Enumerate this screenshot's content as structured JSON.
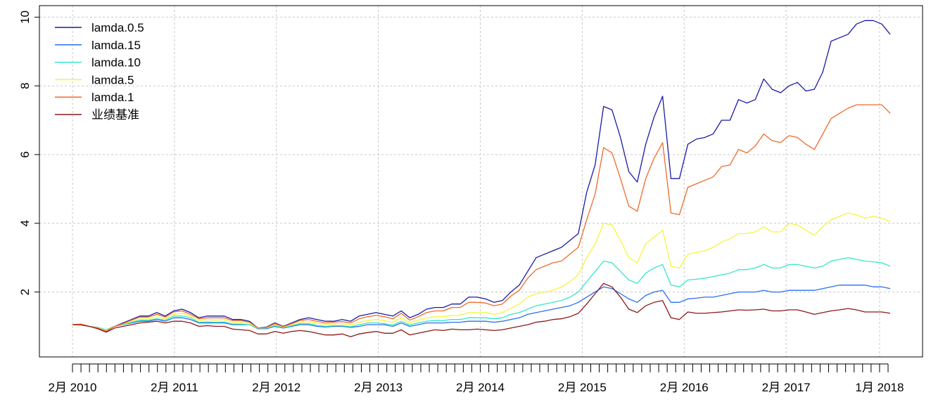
{
  "chart_data": {
    "type": "line",
    "title": "",
    "xlabel": "",
    "ylabel": "",
    "ylim": [
      0,
      10
    ],
    "y_ticks": [
      2,
      4,
      6,
      8,
      10
    ],
    "x_tick_labels": [
      "2月 2010",
      "2月 2011",
      "2月 2012",
      "2月 2013",
      "2月 2014",
      "2月 2015",
      "2月 2016",
      "2月 2017",
      "1月 2018"
    ],
    "grid": true,
    "legend_position": "top-left",
    "x_start": "2010-02",
    "x_end": "2018-02",
    "series": [
      {
        "name": "lamda.0.5",
        "color": "#1a1aa6",
        "values": [
          1.05,
          1.06,
          1.0,
          0.95,
          0.85,
          1.0,
          1.1,
          1.2,
          1.3,
          1.3,
          1.4,
          1.3,
          1.45,
          1.5,
          1.4,
          1.25,
          1.3,
          1.3,
          1.3,
          1.2,
          1.2,
          1.15,
          0.95,
          0.98,
          1.1,
          1.0,
          1.1,
          1.2,
          1.25,
          1.2,
          1.15,
          1.15,
          1.2,
          1.15,
          1.3,
          1.35,
          1.4,
          1.35,
          1.3,
          1.45,
          1.25,
          1.35,
          1.5,
          1.55,
          1.55,
          1.65,
          1.65,
          1.85,
          1.85,
          1.8,
          1.7,
          1.75,
          2.0,
          2.2,
          2.6,
          3.0,
          3.1,
          3.2,
          3.3,
          3.5,
          3.7,
          4.9,
          5.7,
          7.4,
          7.3,
          6.5,
          5.5,
          5.2,
          6.3,
          7.1,
          7.7,
          5.3,
          5.3,
          6.3,
          6.45,
          6.5,
          6.6,
          7.0,
          7.0,
          7.6,
          7.5,
          7.6,
          8.2,
          7.9,
          7.8,
          8.0,
          8.1,
          7.85,
          7.9,
          8.4,
          9.3,
          9.4,
          9.5,
          9.8,
          9.9,
          9.9,
          9.8,
          9.5
        ]
      },
      {
        "name": "lamda.15",
        "color": "#2a6ff2",
        "values": [
          1.05,
          1.05,
          1.0,
          0.97,
          0.9,
          1.0,
          1.05,
          1.1,
          1.15,
          1.15,
          1.2,
          1.15,
          1.25,
          1.25,
          1.2,
          1.1,
          1.1,
          1.1,
          1.1,
          1.05,
          1.05,
          1.05,
          0.93,
          0.93,
          1.0,
          0.95,
          1.0,
          1.05,
          1.05,
          1.0,
          0.98,
          1.0,
          1.0,
          0.97,
          1.0,
          1.05,
          1.05,
          1.05,
          1.0,
          1.1,
          1.0,
          1.05,
          1.1,
          1.1,
          1.1,
          1.12,
          1.12,
          1.15,
          1.15,
          1.15,
          1.12,
          1.15,
          1.2,
          1.25,
          1.35,
          1.4,
          1.45,
          1.5,
          1.55,
          1.6,
          1.7,
          1.85,
          2.0,
          2.15,
          2.1,
          1.95,
          1.8,
          1.7,
          1.9,
          2.0,
          2.05,
          1.7,
          1.7,
          1.8,
          1.82,
          1.85,
          1.85,
          1.9,
          1.95,
          2.0,
          2.0,
          2.0,
          2.05,
          2.0,
          2.0,
          2.05,
          2.05,
          2.05,
          2.05,
          2.1,
          2.15,
          2.2,
          2.2,
          2.2,
          2.2,
          2.15,
          2.15,
          2.1
        ]
      },
      {
        "name": "lamda.10",
        "color": "#35e8c8",
        "values": [
          1.05,
          1.05,
          1.0,
          0.97,
          0.9,
          1.0,
          1.05,
          1.12,
          1.18,
          1.18,
          1.22,
          1.18,
          1.3,
          1.3,
          1.25,
          1.12,
          1.13,
          1.12,
          1.13,
          1.07,
          1.07,
          1.05,
          0.94,
          0.95,
          1.02,
          0.97,
          1.02,
          1.08,
          1.08,
          1.03,
          1.0,
          1.02,
          1.02,
          0.99,
          1.05,
          1.1,
          1.1,
          1.08,
          1.04,
          1.15,
          1.04,
          1.1,
          1.15,
          1.17,
          1.17,
          1.2,
          1.2,
          1.25,
          1.25,
          1.25,
          1.22,
          1.25,
          1.35,
          1.4,
          1.5,
          1.6,
          1.65,
          1.7,
          1.75,
          1.85,
          2.0,
          2.3,
          2.6,
          2.9,
          2.85,
          2.6,
          2.35,
          2.25,
          2.55,
          2.7,
          2.8,
          2.2,
          2.15,
          2.35,
          2.37,
          2.4,
          2.45,
          2.5,
          2.55,
          2.65,
          2.65,
          2.7,
          2.8,
          2.7,
          2.7,
          2.8,
          2.8,
          2.75,
          2.7,
          2.75,
          2.9,
          2.95,
          3.0,
          2.95,
          2.9,
          2.88,
          2.85,
          2.75
        ]
      },
      {
        "name": "lamda.5",
        "color": "#f5f53a",
        "values": [
          1.05,
          1.06,
          1.0,
          0.96,
          0.88,
          1.0,
          1.07,
          1.15,
          1.22,
          1.22,
          1.28,
          1.22,
          1.35,
          1.38,
          1.3,
          1.17,
          1.2,
          1.18,
          1.2,
          1.12,
          1.12,
          1.08,
          0.95,
          0.96,
          1.05,
          0.98,
          1.05,
          1.12,
          1.14,
          1.1,
          1.05,
          1.07,
          1.08,
          1.04,
          1.12,
          1.17,
          1.2,
          1.17,
          1.12,
          1.25,
          1.1,
          1.18,
          1.25,
          1.28,
          1.28,
          1.32,
          1.32,
          1.4,
          1.4,
          1.4,
          1.35,
          1.4,
          1.52,
          1.65,
          1.85,
          1.95,
          2.0,
          2.05,
          2.15,
          2.3,
          2.5,
          3.0,
          3.4,
          4.0,
          3.95,
          3.5,
          3.0,
          2.85,
          3.4,
          3.6,
          3.8,
          2.75,
          2.7,
          3.1,
          3.15,
          3.2,
          3.3,
          3.45,
          3.55,
          3.7,
          3.7,
          3.75,
          3.9,
          3.75,
          3.75,
          4.0,
          3.95,
          3.8,
          3.65,
          3.9,
          4.1,
          4.2,
          4.3,
          4.25,
          4.15,
          4.2,
          4.15,
          4.05
        ]
      },
      {
        "name": "lamda.1",
        "color": "#f06a2a",
        "values": [
          1.05,
          1.07,
          1.0,
          0.95,
          0.86,
          1.0,
          1.08,
          1.18,
          1.27,
          1.27,
          1.35,
          1.27,
          1.42,
          1.45,
          1.35,
          1.22,
          1.25,
          1.25,
          1.25,
          1.17,
          1.17,
          1.12,
          0.95,
          0.97,
          1.08,
          0.99,
          1.08,
          1.17,
          1.2,
          1.15,
          1.1,
          1.12,
          1.14,
          1.1,
          1.22,
          1.28,
          1.32,
          1.28,
          1.22,
          1.38,
          1.18,
          1.28,
          1.4,
          1.45,
          1.45,
          1.55,
          1.55,
          1.7,
          1.7,
          1.68,
          1.6,
          1.65,
          1.88,
          2.05,
          2.4,
          2.65,
          2.75,
          2.85,
          2.9,
          3.1,
          3.3,
          4.1,
          4.85,
          6.2,
          6.05,
          5.3,
          4.5,
          4.35,
          5.3,
          5.9,
          6.35,
          4.3,
          4.25,
          5.05,
          5.15,
          5.25,
          5.35,
          5.65,
          5.7,
          6.15,
          6.05,
          6.25,
          6.6,
          6.4,
          6.35,
          6.55,
          6.5,
          6.3,
          6.15,
          6.6,
          7.05,
          7.2,
          7.35,
          7.45,
          7.45,
          7.45,
          7.45,
          7.2
        ]
      },
      {
        "name": "业绩基准",
        "color": "#8b1a1a",
        "values": [
          1.05,
          1.04,
          1.0,
          0.93,
          0.83,
          0.95,
          1.0,
          1.05,
          1.1,
          1.12,
          1.15,
          1.1,
          1.15,
          1.15,
          1.1,
          1.0,
          1.02,
          1.0,
          1.0,
          0.92,
          0.9,
          0.88,
          0.78,
          0.78,
          0.85,
          0.8,
          0.85,
          0.88,
          0.85,
          0.8,
          0.75,
          0.75,
          0.78,
          0.7,
          0.78,
          0.82,
          0.85,
          0.8,
          0.8,
          0.9,
          0.75,
          0.8,
          0.85,
          0.9,
          0.88,
          0.92,
          0.9,
          0.9,
          0.92,
          0.9,
          0.88,
          0.9,
          0.95,
          1.0,
          1.05,
          1.12,
          1.15,
          1.2,
          1.22,
          1.28,
          1.38,
          1.65,
          1.95,
          2.25,
          2.15,
          1.85,
          1.5,
          1.4,
          1.6,
          1.7,
          1.75,
          1.25,
          1.2,
          1.42,
          1.38,
          1.38,
          1.4,
          1.42,
          1.45,
          1.48,
          1.47,
          1.48,
          1.5,
          1.45,
          1.45,
          1.48,
          1.48,
          1.42,
          1.35,
          1.4,
          1.45,
          1.48,
          1.52,
          1.48,
          1.42,
          1.42,
          1.42,
          1.38
        ]
      }
    ]
  }
}
